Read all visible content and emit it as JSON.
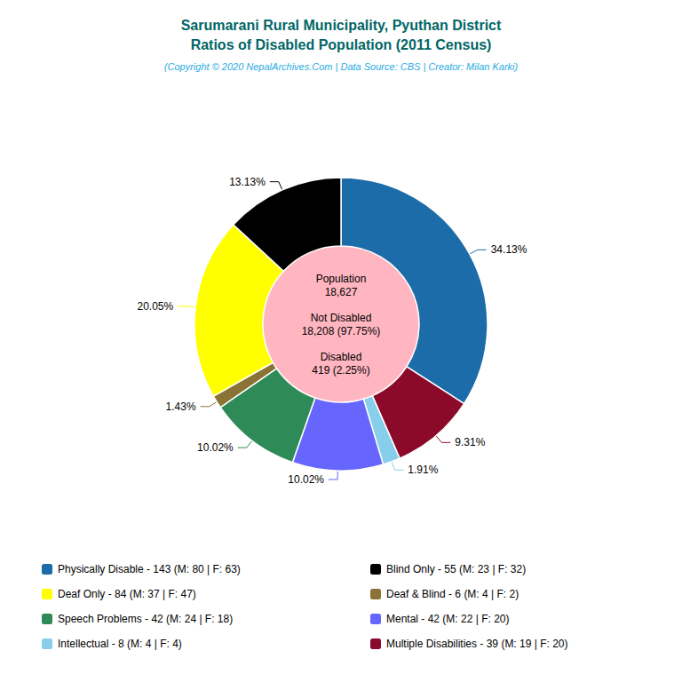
{
  "chart_data": {
    "type": "pie",
    "title": "Sarumarani Rural Municipality, Pyuthan District\nRatios of Disabled Population (2011 Census)",
    "subtitle": "(Copyright © 2020 NepalArchives.Com | Data Source: CBS | Creator: Milan Karki)",
    "title_color": "#006666",
    "subtitle_color": "#29ABE2",
    "categories": [
      "Physically Disable",
      "Multiple Disabilities",
      "Intellectual",
      "Mental",
      "Speech Problems",
      "Deaf & Blind",
      "Deaf Only",
      "Blind Only"
    ],
    "values": [
      34.13,
      9.31,
      1.91,
      10.02,
      10.02,
      1.43,
      20.05,
      13.13
    ],
    "value_labels": [
      "34.13%",
      "9.31%",
      "1.91%",
      "10.02%",
      "10.02%",
      "1.43%",
      "20.05%",
      "13.13%"
    ],
    "colors": [
      "#1B6CA8",
      "#8B0A2A",
      "#87CEEB",
      "#6666FF",
      "#2E8B57",
      "#8B7336",
      "#FFFF00",
      "#000000"
    ],
    "data_labels": true,
    "annotations": [
      "Population\n18,627",
      "Not Disabled\n18,208 (97.75%)",
      "Disabled\n419 (2.25%)"
    ],
    "hole_color": "#FFB6C1",
    "legend": "bottom",
    "legend_columns": [
      [
        {
          "category": "Physically Disable",
          "label": "Physically Disable - 143 (M: 80 | F: 63)"
        },
        {
          "category": "Deaf Only",
          "label": "Deaf Only - 84 (M: 37 | F: 47)"
        },
        {
          "category": "Speech Problems",
          "label": "Speech Problems - 42 (M: 24 | F: 18)"
        },
        {
          "category": "Intellectual",
          "label": "Intellectual - 8 (M: 4 | F: 4)"
        }
      ],
      [
        {
          "category": "Blind Only",
          "label": "Blind Only - 55 (M: 23 | F: 32)"
        },
        {
          "category": "Deaf & Blind",
          "label": "Deaf & Blind - 6 (M: 4 | F: 2)"
        },
        {
          "category": "Mental",
          "label": "Mental - 42 (M: 22 | F: 20)"
        },
        {
          "category": "Multiple Disabilities",
          "label": "Multiple Disabilities - 39 (M: 19 | F: 20)"
        }
      ]
    ]
  }
}
